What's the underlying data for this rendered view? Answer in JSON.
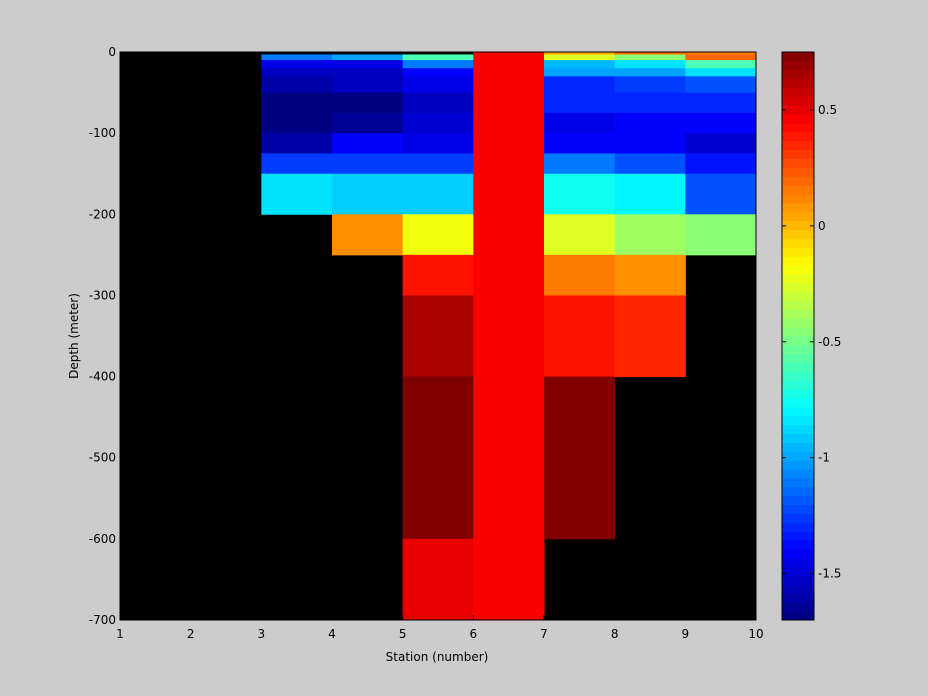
{
  "chart_data": {
    "type": "heatmap",
    "title": "",
    "xlabel": "Station (number)",
    "ylabel": "Depth (meter)",
    "xlim": [
      1,
      10
    ],
    "ylim": [
      -700,
      0
    ],
    "x_ticks": [
      "1",
      "2",
      "3",
      "4",
      "5",
      "6",
      "7",
      "8",
      "9",
      "10"
    ],
    "y_ticks": [
      "0",
      "-100",
      "-200",
      "-300",
      "-400",
      "-500",
      "-600",
      "-700"
    ],
    "x_cell_edges": [
      1,
      2,
      3,
      4,
      5,
      6,
      7,
      8,
      9,
      10
    ],
    "depth_layers": [
      [
        0,
        -3
      ],
      [
        -3,
        -10
      ],
      [
        -10,
        -20
      ],
      [
        -20,
        -30
      ],
      [
        -30,
        -50
      ],
      [
        -50,
        -75
      ],
      [
        -75,
        -100
      ],
      [
        -100,
        -125
      ],
      [
        -125,
        -150
      ],
      [
        -150,
        -200
      ],
      [
        -200,
        -250
      ],
      [
        -250,
        -300
      ],
      [
        -300,
        -400
      ],
      [
        -400,
        -500
      ],
      [
        -500,
        -600
      ],
      [
        -600,
        -700
      ]
    ],
    "values_by_station": [
      {
        "station": 1,
        "values": [
          null,
          null,
          null,
          null,
          null,
          null,
          null,
          null,
          null,
          null,
          null,
          null,
          null,
          null,
          null,
          null
        ]
      },
      {
        "station": 2,
        "values": [
          null,
          null,
          null,
          null,
          null,
          null,
          null,
          null,
          null,
          null,
          null,
          null,
          null,
          null,
          null,
          null
        ]
      },
      {
        "station": 3,
        "values": [
          null,
          -1.1,
          -1.45,
          -1.55,
          -1.6,
          -1.7,
          -1.7,
          -1.6,
          -1.25,
          -0.85,
          null,
          null,
          null,
          null,
          null,
          null
        ]
      },
      {
        "station": 4,
        "values": [
          null,
          -1.0,
          -1.45,
          -1.55,
          -1.55,
          -1.7,
          -1.65,
          -1.4,
          -1.25,
          -0.9,
          0.1,
          null,
          null,
          null,
          null,
          null
        ]
      },
      {
        "station": 5,
        "values": [
          null,
          -0.6,
          -1.1,
          -1.4,
          -1.45,
          -1.55,
          -1.5,
          -1.45,
          -1.25,
          -0.9,
          -0.2,
          0.4,
          0.65,
          0.75,
          0.75,
          0.5
        ]
      },
      {
        "station": 6,
        "values": [
          0.45,
          0.45,
          0.45,
          0.45,
          0.45,
          0.45,
          0.45,
          0.45,
          0.45,
          0.45,
          0.45,
          0.45,
          0.45,
          0.45,
          0.45,
          0.45
        ]
      },
      {
        "station": 7,
        "values": [
          0.05,
          -0.25,
          -0.95,
          -1.0,
          -1.3,
          -1.3,
          -1.45,
          -1.4,
          -1.1,
          -0.75,
          -0.25,
          0.15,
          0.4,
          0.75,
          0.75,
          null
        ]
      },
      {
        "station": 8,
        "values": [
          0.2,
          -0.45,
          -0.85,
          -1.0,
          -1.25,
          -1.3,
          -1.4,
          -1.4,
          -1.2,
          -0.8,
          -0.4,
          0.1,
          0.35,
          null,
          null,
          null
        ]
      },
      {
        "station": 9,
        "values": [
          0.15,
          0.2,
          -0.6,
          -0.85,
          -1.2,
          -1.3,
          -1.4,
          -1.5,
          -1.35,
          -1.2,
          -0.45,
          null,
          null,
          null,
          null,
          null
        ]
      }
    ],
    "colorbar": {
      "min": -1.7,
      "max": 0.75,
      "ticks": [
        "0.5",
        "0",
        "-0.5",
        "-1",
        "-1.5"
      ],
      "tick_values": [
        0.5,
        0,
        -0.5,
        -1,
        -1.5
      ],
      "colormap": "jet",
      "levels": 64
    },
    "missing_color": "#000000",
    "background_color": "#cccccc",
    "grid": false,
    "legend": "colorbar-right"
  }
}
